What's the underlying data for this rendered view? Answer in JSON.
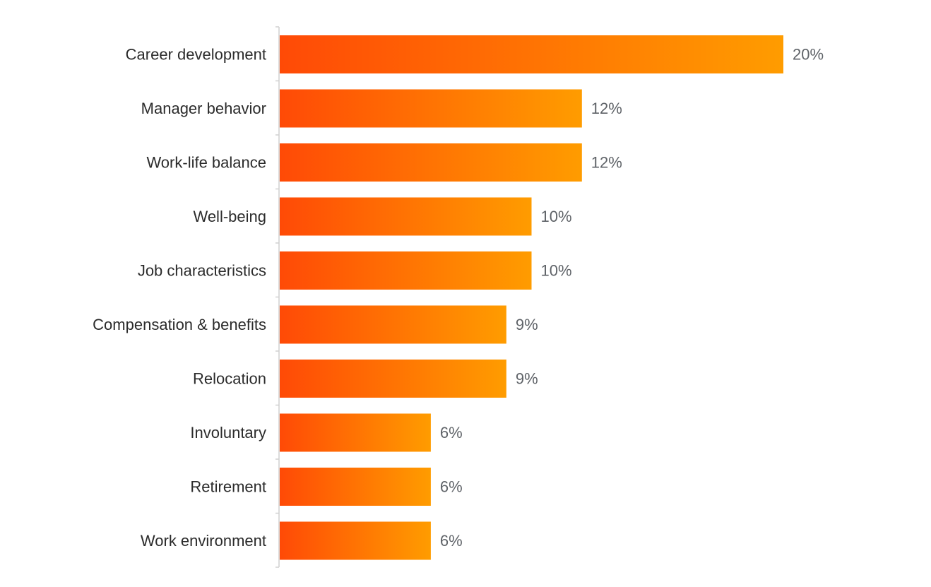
{
  "chart_data": {
    "type": "bar",
    "orientation": "horizontal",
    "categories": [
      "Career development",
      "Manager behavior",
      "Work-life balance",
      "Well-being",
      "Job characteristics",
      "Compensation & benefits",
      "Relocation",
      "Involuntary",
      "Retirement",
      "Work environment"
    ],
    "values": [
      20,
      12,
      12,
      10,
      10,
      9,
      9,
      6,
      6,
      6
    ],
    "value_labels": [
      "20%",
      "12%",
      "12%",
      "10%",
      "10%",
      "9%",
      "9%",
      "6%",
      "6%",
      "6%"
    ],
    "unit": "%",
    "xlim": [
      0,
      20
    ],
    "grid": false,
    "legend": "none"
  },
  "colors": {
    "bar_gradient_start": "#ff4a06",
    "bar_gradient_end": "#ff9c00",
    "axis": "#d0d0d0",
    "category_text": "#2b2b2b",
    "value_text": "#5f6368"
  }
}
